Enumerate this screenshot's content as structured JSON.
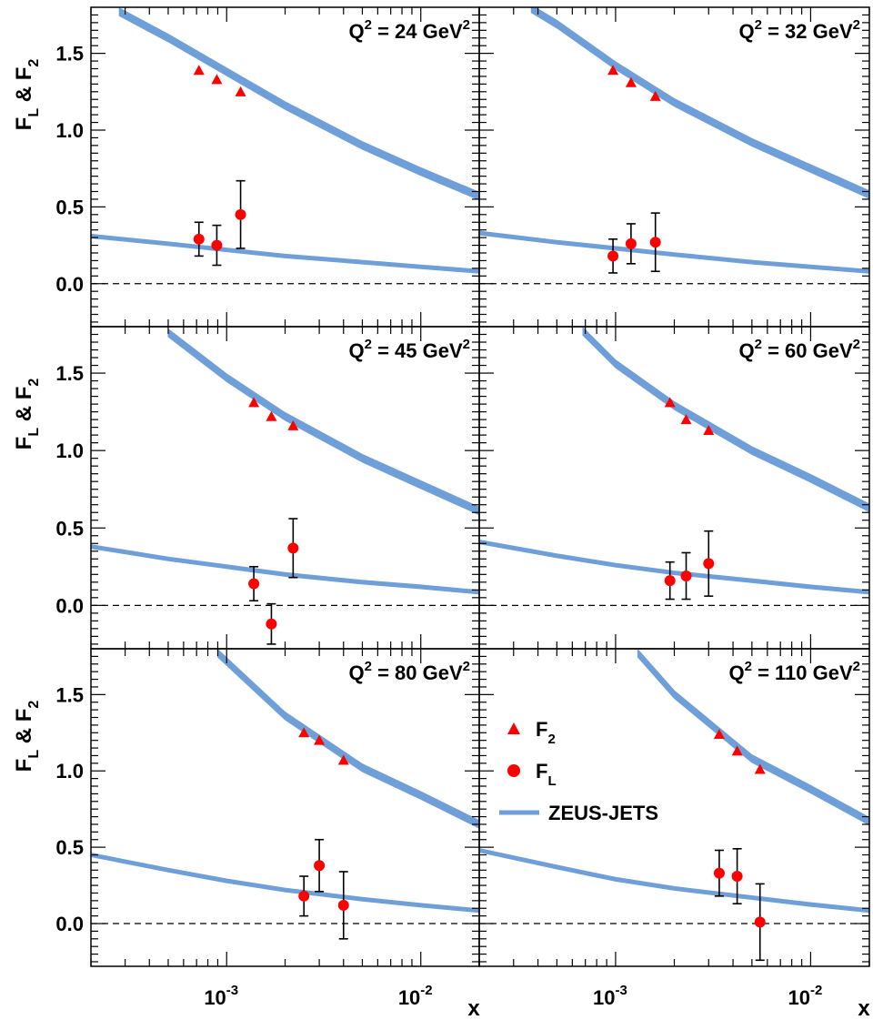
{
  "chart_data": {
    "type": "scatter",
    "layout": "3 rows x 2 columns of panels",
    "xscale": "log",
    "xlim": [
      0.0002,
      0.02
    ],
    "ylim": [
      -0.28,
      1.8
    ],
    "xlabel": "x",
    "ylabel_parts": [
      "F",
      "L",
      "&",
      "F",
      "2"
    ],
    "x_tick_labels": [
      {
        "base": "10",
        "exp": "-3",
        "value": 0.001
      },
      {
        "base": "10",
        "exp": "-2",
        "value": 0.01
      }
    ],
    "y_ticks": [
      0.0,
      0.5,
      1.0,
      1.5
    ],
    "y_tick_labels": [
      "0.0",
      "0.5",
      "1.0",
      "1.5"
    ],
    "legend": {
      "position": "panel 6, middle-left",
      "entries": [
        {
          "symbol": "triangle",
          "main": "F",
          "sub": "2"
        },
        {
          "symbol": "circle",
          "main": "F",
          "sub": "L"
        },
        {
          "symbol": "band",
          "main": "ZEUS-JETS",
          "sub": ""
        }
      ]
    },
    "colors": {
      "data": "#ff0000",
      "band": "#6f9fd8",
      "errorbar": "#000000"
    },
    "panels": [
      {
        "title_prefix": "Q",
        "title_exp": "2",
        "title_mid": " = 24 GeV",
        "title_exp2": "2",
        "Q2": 24,
        "F2": [
          {
            "x": 0.00072,
            "y": 1.39
          },
          {
            "x": 0.00089,
            "y": 1.33
          },
          {
            "x": 0.00118,
            "y": 1.25
          }
        ],
        "FL": [
          {
            "x": 0.00072,
            "y": 0.29,
            "err": 0.11
          },
          {
            "x": 0.00089,
            "y": 0.25,
            "err": 0.13
          },
          {
            "x": 0.00118,
            "y": 0.45,
            "err": 0.22
          }
        ],
        "F2_band": {
          "x": [
            0.00028,
            0.0005,
            0.001,
            0.002,
            0.005,
            0.01,
            0.02
          ],
          "y": [
            1.77,
            1.6,
            1.38,
            1.16,
            0.9,
            0.73,
            0.57
          ],
          "halfwidth": 0.025
        },
        "FL_band": {
          "x": [
            0.0002,
            0.0005,
            0.001,
            0.002,
            0.005,
            0.01,
            0.02
          ],
          "y": [
            0.31,
            0.26,
            0.22,
            0.18,
            0.14,
            0.11,
            0.08
          ],
          "halfwidth": 0.012
        }
      },
      {
        "title_prefix": "Q",
        "title_exp": "2",
        "title_mid": " = 32 GeV",
        "title_exp2": "2",
        "Q2": 32,
        "F2": [
          {
            "x": 0.00097,
            "y": 1.39
          },
          {
            "x": 0.0012,
            "y": 1.31
          },
          {
            "x": 0.0016,
            "y": 1.22
          }
        ],
        "FL": [
          {
            "x": 0.00097,
            "y": 0.18,
            "err": 0.11
          },
          {
            "x": 0.0012,
            "y": 0.26,
            "err": 0.13
          },
          {
            "x": 0.0016,
            "y": 0.27,
            "err": 0.19
          }
        ],
        "F2_band": {
          "x": [
            0.00037,
            0.0005,
            0.001,
            0.002,
            0.005,
            0.01,
            0.02
          ],
          "y": [
            1.79,
            1.69,
            1.42,
            1.18,
            0.92,
            0.75,
            0.58
          ],
          "halfwidth": 0.025
        },
        "FL_band": {
          "x": [
            0.0002,
            0.0005,
            0.001,
            0.002,
            0.005,
            0.01,
            0.02
          ],
          "y": [
            0.33,
            0.27,
            0.23,
            0.19,
            0.14,
            0.11,
            0.08
          ],
          "halfwidth": 0.012
        }
      },
      {
        "title_prefix": "Q",
        "title_exp": "2",
        "title_mid": " = 45 GeV",
        "title_exp2": "2",
        "Q2": 45,
        "F2": [
          {
            "x": 0.00138,
            "y": 1.31
          },
          {
            "x": 0.0017,
            "y": 1.22
          },
          {
            "x": 0.0022,
            "y": 1.16
          }
        ],
        "FL": [
          {
            "x": 0.00138,
            "y": 0.14,
            "err": 0.11
          },
          {
            "x": 0.0017,
            "y": -0.12,
            "err": 0.13
          },
          {
            "x": 0.0022,
            "y": 0.37,
            "err": 0.19
          }
        ],
        "F2_band": {
          "x": [
            0.0005,
            0.001,
            0.002,
            0.005,
            0.01,
            0.02
          ],
          "y": [
            1.76,
            1.47,
            1.22,
            0.95,
            0.78,
            0.61
          ],
          "halfwidth": 0.025
        },
        "FL_band": {
          "x": [
            0.0002,
            0.0005,
            0.001,
            0.002,
            0.005,
            0.01,
            0.02
          ],
          "y": [
            0.38,
            0.3,
            0.25,
            0.2,
            0.15,
            0.12,
            0.085
          ],
          "halfwidth": 0.012
        }
      },
      {
        "title_prefix": "Q",
        "title_exp": "2",
        "title_mid": " = 60 GeV",
        "title_exp2": "2",
        "Q2": 60,
        "F2": [
          {
            "x": 0.0019,
            "y": 1.31
          },
          {
            "x": 0.0023,
            "y": 1.2
          },
          {
            "x": 0.003,
            "y": 1.13
          }
        ],
        "FL": [
          {
            "x": 0.0019,
            "y": 0.16,
            "err": 0.12
          },
          {
            "x": 0.0023,
            "y": 0.19,
            "err": 0.15
          },
          {
            "x": 0.003,
            "y": 0.27,
            "err": 0.21
          }
        ],
        "F2_band": {
          "x": [
            0.00068,
            0.001,
            0.002,
            0.005,
            0.01,
            0.02
          ],
          "y": [
            1.77,
            1.56,
            1.29,
            1.0,
            0.82,
            0.63
          ],
          "halfwidth": 0.025
        },
        "FL_band": {
          "x": [
            0.0002,
            0.0005,
            0.001,
            0.002,
            0.005,
            0.01,
            0.02
          ],
          "y": [
            0.41,
            0.32,
            0.26,
            0.21,
            0.16,
            0.12,
            0.085
          ],
          "halfwidth": 0.012
        }
      },
      {
        "title_prefix": "Q",
        "title_exp": "2",
        "title_mid": " = 80 GeV",
        "title_exp2": "2",
        "Q2": 80,
        "F2": [
          {
            "x": 0.0025,
            "y": 1.25
          },
          {
            "x": 0.003,
            "y": 1.2
          },
          {
            "x": 0.004,
            "y": 1.07
          }
        ],
        "FL": [
          {
            "x": 0.0025,
            "y": 0.18,
            "err": 0.13
          },
          {
            "x": 0.003,
            "y": 0.38,
            "err": 0.17
          },
          {
            "x": 0.004,
            "y": 0.12,
            "err": 0.22
          }
        ],
        "F2_band": {
          "x": [
            0.0009,
            0.002,
            0.005,
            0.01,
            0.02
          ],
          "y": [
            1.77,
            1.36,
            1.02,
            0.84,
            0.65
          ],
          "halfwidth": 0.025
        },
        "FL_band": {
          "x": [
            0.0002,
            0.0005,
            0.001,
            0.002,
            0.005,
            0.01,
            0.02
          ],
          "y": [
            0.45,
            0.35,
            0.28,
            0.22,
            0.16,
            0.12,
            0.085
          ],
          "halfwidth": 0.012
        }
      },
      {
        "title_prefix": "Q",
        "title_exp": "2",
        "title_mid": " = 110 GeV",
        "title_exp2": "2",
        "Q2": 110,
        "F2": [
          {
            "x": 0.0034,
            "y": 1.24
          },
          {
            "x": 0.0042,
            "y": 1.13
          },
          {
            "x": 0.0055,
            "y": 1.01
          }
        ],
        "FL": [
          {
            "x": 0.0034,
            "y": 0.33,
            "err": 0.15
          },
          {
            "x": 0.0042,
            "y": 0.31,
            "err": 0.18
          },
          {
            "x": 0.0055,
            "y": 0.01,
            "err": 0.25
          }
        ],
        "F2_band": {
          "x": [
            0.0013,
            0.002,
            0.005,
            0.01,
            0.02
          ],
          "y": [
            1.77,
            1.5,
            1.08,
            0.88,
            0.67
          ],
          "halfwidth": 0.025
        },
        "FL_band": {
          "x": [
            0.0002,
            0.0005,
            0.001,
            0.002,
            0.005,
            0.01,
            0.02
          ],
          "y": [
            0.48,
            0.37,
            0.29,
            0.23,
            0.17,
            0.125,
            0.085
          ],
          "halfwidth": 0.012
        }
      }
    ]
  }
}
